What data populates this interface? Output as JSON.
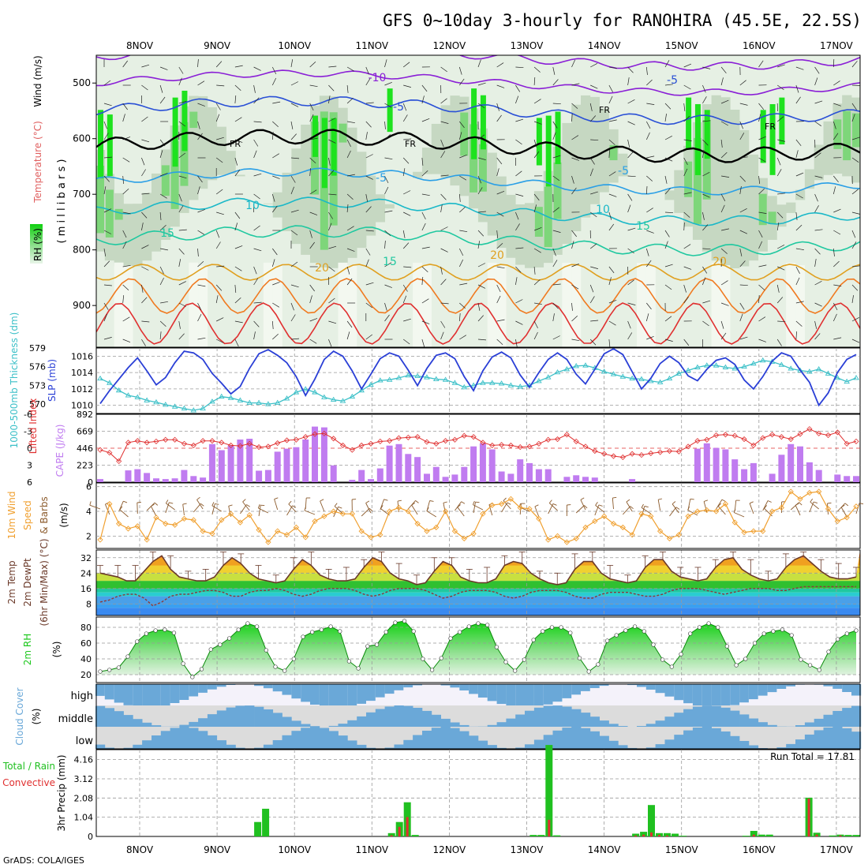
{
  "header": {
    "title": "GFS 0~10day 3-hourly for RANOHIRA (45.5E, 22.5S)",
    "credit": "GrADS: COLA/IGES",
    "run_total": "Run Total = 17.81"
  },
  "colors": {
    "rh_light": "#e6f0e4",
    "rh_mid": "#c6d8c2",
    "rh_high": "#7ed67a",
    "rh_sat": "#1ee21e",
    "slp": "#2a3fd6",
    "thickness": "#3cc0c8",
    "cape": "#c07cf0",
    "lifted": "#e03030",
    "wind10": "#f0a030",
    "barb": "#8b5a2b",
    "rh2m": "#1ec81e",
    "cloud": "#6aa8d8",
    "precip_total": "#20c020",
    "precip_conv": "#e03030",
    "temp_line": "#6b3a2a"
  },
  "dates": [
    "8NOV",
    "9NOV",
    "10NOV",
    "11NOV",
    "12NOV",
    "13NOV",
    "14NOV",
    "15NOV",
    "16NOV",
    "17NOV"
  ],
  "panels": {
    "upper": {
      "ylabel_rh": "RH (%)",
      "ylabel_temp": "Temperature (°C)",
      "ylabel_wind": "Wind (m/s)",
      "ylabel_p": "( m i l l i b a r s )",
      "yticks": [
        "500",
        "600",
        "700",
        "800",
        "900"
      ],
      "contour_labels": [
        "-10",
        "-5",
        "-5",
        "FR",
        "FR",
        "FR",
        "FR",
        "-5",
        "-5",
        "10",
        "10",
        "15",
        "15",
        "15",
        "20",
        "20",
        "20"
      ]
    },
    "slp": {
      "ylabel_thick": "1000-500mb Thickness (dm)",
      "ylabel_slp": "SLP (mb)",
      "thick_ticks": [
        "579",
        "576",
        "573",
        "570"
      ],
      "slp_ticks": [
        "1016",
        "1014",
        "1012",
        "1010"
      ]
    },
    "cape": {
      "ylabel_li": "Lifted Index",
      "ylabel_cape": "CAPE (J/kg)",
      "li_ticks": [
        "-6",
        "-3",
        "0",
        "3",
        "6"
      ],
      "cape_ticks": [
        "892",
        "669",
        "446",
        "223",
        "0"
      ]
    },
    "wind": {
      "ylabel_1": "10m Wind",
      "ylabel_2": "Speed",
      "ylabel_3": "& Barbs",
      "ylabel_4": "(m/s)",
      "ticks": [
        "6",
        "4",
        "2"
      ]
    },
    "temp": {
      "ylabel_1": "2m Temp",
      "ylabel_2": "2m DewPt",
      "ylabel_3": "(6hr Min/Max) (°C)",
      "ticks": [
        "32",
        "24",
        "16",
        "8"
      ]
    },
    "rh": {
      "ylabel_1": "2m RH",
      "ylabel_2": "(%)",
      "ticks": [
        "80",
        "60",
        "40",
        "20"
      ]
    },
    "cloud": {
      "ylabel_1": "Cloud Cover",
      "ylabel_2": "(%)",
      "levels": [
        "high",
        "middle",
        "low"
      ]
    },
    "precip": {
      "ylabel_1": "Total / Rain",
      "ylabel_2": "Convective",
      "ylabel_3": "3hr Precip (mm)",
      "ticks": [
        "4.16",
        "3.12",
        "2.08",
        "1.04",
        "0"
      ]
    }
  },
  "chart_data": [
    {
      "type": "line",
      "name": "slp_thickness",
      "series": [
        {
          "name": "SLP (mb)",
          "ylim": [
            1009,
            1017
          ],
          "values": [
            1010.2,
            1011.8,
            1013.2,
            1014.6,
            1015.8,
            1014.2,
            1012.5,
            1013.4,
            1015.2,
            1016.6,
            1016.4,
            1015.6,
            1013.9,
            1012.7,
            1011.4,
            1012.3,
            1014.5,
            1016.3,
            1016.8,
            1016.1,
            1015.2,
            1013.5,
            1011.2,
            1013.2,
            1015.6,
            1016.6,
            1016.0,
            1014.2,
            1012.0,
            1013.8,
            1015.7,
            1016.4,
            1016.0,
            1014.3,
            1012.4,
            1014.5,
            1016.1,
            1016.4,
            1015.7,
            1013.5,
            1011.8,
            1014.2,
            1015.9,
            1016.5,
            1015.8,
            1013.7,
            1012.2,
            1014.0,
            1015.6,
            1016.4,
            1015.6,
            1013.8,
            1012.6,
            1014.4,
            1016.3,
            1016.9,
            1016.2,
            1014.1,
            1012.0,
            1013.3,
            1015.1,
            1016.0,
            1015.2,
            1013.6,
            1013.0,
            1014.4,
            1015.5,
            1015.8,
            1015.0,
            1013.1,
            1012.0,
            1013.5,
            1015.4,
            1016.4,
            1016.0,
            1014.3,
            1012.8,
            1010.0,
            1011.5,
            1014.0,
            1015.6,
            1016.2
          ]
        },
        {
          "name": "Thickness (dm)",
          "ylim": [
            568.5,
            579
          ],
          "values": [
            574.1,
            573.4,
            572.2,
            571.4,
            571.1,
            570.6,
            570.3,
            569.9,
            569.6,
            569.3,
            569.0,
            569.3,
            570.4,
            571.2,
            571.0,
            570.6,
            570.2,
            570.2,
            570.0,
            570.2,
            570.9,
            571.9,
            572.4,
            571.9,
            571.1,
            570.7,
            570.5,
            571.2,
            572.2,
            573.1,
            573.8,
            573.9,
            574.2,
            574.6,
            574.5,
            574.3,
            574.0,
            573.9,
            573.4,
            572.7,
            573.0,
            573.4,
            573.4,
            573.3,
            573.0,
            572.8,
            573.0,
            573.7,
            574.3,
            575.1,
            575.6,
            576.1,
            576.2,
            575.8,
            575.2,
            574.8,
            574.4,
            574.1,
            574.0,
            573.7,
            573.5,
            574.1,
            574.9,
            575.4,
            575.9,
            576.2,
            576.2,
            575.9,
            575.7,
            576.0,
            576.5,
            577.0,
            576.8,
            576.3,
            575.7,
            575.4,
            575.2,
            575.6,
            574.9,
            574.2,
            573.6,
            574.2
          ]
        }
      ]
    },
    {
      "type": "bar",
      "name": "cape_li",
      "ylim": [
        0,
        892
      ],
      "cape": [
        40,
        0,
        0,
        155,
        170,
        120,
        50,
        40,
        50,
        160,
        80,
        60,
        500,
        420,
        480,
        560,
        570,
        150,
        160,
        400,
        440,
        460,
        560,
        730,
        720,
        220,
        0,
        30,
        160,
        40,
        180,
        480,
        500,
        370,
        330,
        110,
        200,
        70,
        100,
        200,
        470,
        510,
        430,
        140,
        110,
        300,
        250,
        170,
        170,
        0,
        70,
        90,
        70,
        60,
        0,
        0,
        0,
        40,
        0,
        0,
        0,
        0,
        0,
        0,
        440,
        510,
        450,
        430,
        300,
        170,
        250,
        0,
        110,
        360,
        500,
        470,
        260,
        160,
        0,
        100,
        80,
        80
      ],
      "li_ylim": [
        -6,
        6
      ],
      "lifted_index": [
        0.3,
        0.8,
        2.3,
        -1.0,
        -1.3,
        -1.0,
        -1.2,
        -1.5,
        -1.5,
        -0.8,
        -0.5,
        -1.3,
        -1.3,
        -1.0,
        -0.5,
        -0.4,
        -0.8,
        -0.2,
        -0.3,
        -0.9,
        -1.4,
        -1.5,
        -2.0,
        -2.5,
        -2.6,
        -1.7,
        -0.5,
        0.3,
        -0.5,
        -0.8,
        -1.2,
        -1.3,
        -1.8,
        -1.9,
        -2.0,
        -1.1,
        -0.8,
        -1.3,
        -1.5,
        -2.2,
        -2.0,
        -1.0,
        -0.5,
        -0.6,
        -0.5,
        -0.2,
        -0.3,
        -0.8,
        -1.5,
        -1.6,
        -2.4,
        -1.2,
        -0.3,
        0.5,
        1.0,
        1.4,
        1.6,
        1.0,
        1.2,
        0.9,
        0.7,
        0.5,
        0.6,
        -0.3,
        -1.3,
        -1.5,
        -2.3,
        -2.4,
        -2.2,
        -1.6,
        -0.5,
        -1.8,
        -2.4,
        -2.0,
        -1.6,
        -2.5,
        -3.4,
        -2.6,
        -2.3,
        -2.8,
        -0.8,
        -1.2
      ]
    },
    {
      "type": "line",
      "name": "wind_10m",
      "ylim": [
        1,
        6.3
      ],
      "values": [
        1.7,
        4.6,
        3.0,
        2.6,
        2.8,
        1.7,
        3.5,
        3.0,
        2.9,
        3.4,
        3.3,
        2.4,
        2.2,
        3.3,
        3.8,
        3.1,
        3.7,
        2.5,
        1.5,
        2.4,
        2.1,
        2.7,
        1.9,
        3.2,
        3.6,
        4.0,
        3.8,
        3.8,
        2.4,
        1.9,
        2.1,
        4.0,
        4.3,
        4.0,
        3.0,
        2.4,
        2.7,
        4.0,
        2.4,
        1.8,
        2.2,
        3.8,
        4.5,
        4.6,
        5.0,
        4.3,
        4.2,
        3.4,
        1.7,
        2.0,
        1.5,
        1.8,
        2.7,
        3.2,
        3.6,
        3.0,
        2.7,
        2.1,
        3.8,
        3.6,
        2.4,
        1.8,
        2.1,
        3.6,
        4.0,
        4.1,
        4.0,
        4.6,
        3.1,
        2.3,
        2.4,
        2.4,
        4.0,
        4.3,
        5.6,
        5.0,
        5.5,
        5.6,
        4.2,
        3.2,
        3.5,
        4.4
      ]
    },
    {
      "type": "area",
      "name": "temp_2m",
      "ylim": [
        2,
        36
      ],
      "temp": [
        24,
        23,
        22,
        20,
        20,
        25,
        30,
        33,
        26,
        22,
        21,
        20,
        20,
        22,
        28,
        32,
        29,
        24,
        21,
        20,
        19,
        20,
        26,
        31,
        28,
        23,
        21,
        20,
        20,
        21,
        27,
        32,
        30,
        24,
        21,
        20,
        18,
        19,
        25,
        30,
        28,
        22,
        20,
        19,
        19,
        21,
        28,
        30,
        29,
        24,
        21,
        19,
        18,
        19,
        26,
        30,
        30,
        24,
        21,
        20,
        19,
        20,
        27,
        31,
        31,
        25,
        22,
        21,
        20,
        21,
        27,
        31,
        32,
        26,
        23,
        21,
        20,
        21,
        27,
        31,
        33,
        29,
        25,
        22,
        21,
        21,
        22
      ],
      "dewpt": [
        9,
        10,
        12,
        13,
        13,
        11,
        7,
        9,
        12,
        13,
        13,
        14,
        15,
        15,
        14,
        12,
        12,
        14,
        15,
        15,
        16,
        15,
        13,
        12,
        13,
        15,
        16,
        16,
        16,
        15,
        13,
        12,
        13,
        15,
        16,
        16,
        16,
        15,
        13,
        11,
        12,
        14,
        15,
        15,
        15,
        14,
        12,
        11,
        12,
        14,
        15,
        15,
        15,
        14,
        12,
        11,
        11,
        13,
        14,
        14,
        14,
        13,
        12,
        12,
        13,
        15,
        16,
        16,
        16,
        15,
        14,
        13,
        14,
        15,
        16,
        16,
        16,
        15,
        15,
        16,
        17,
        17,
        17,
        17,
        17,
        17,
        17
      ]
    },
    {
      "type": "area",
      "name": "rh_2m",
      "ylim": [
        10,
        93
      ],
      "values": [
        24,
        26,
        29,
        43,
        62,
        72,
        76,
        77,
        73,
        34,
        17,
        27,
        52,
        58,
        66,
        77,
        85,
        81,
        51,
        30,
        25,
        40,
        68,
        74,
        77,
        81,
        75,
        37,
        28,
        56,
        58,
        74,
        86,
        88,
        75,
        40,
        26,
        41,
        66,
        74,
        81,
        85,
        83,
        55,
        36,
        25,
        39,
        64,
        75,
        80,
        80,
        73,
        41,
        24,
        33,
        63,
        70,
        76,
        81,
        75,
        58,
        39,
        30,
        46,
        72,
        80,
        85,
        80,
        56,
        32,
        40,
        60,
        72,
        75,
        77,
        70,
        39,
        32,
        26,
        49,
        65,
        72,
        76
      ]
    },
    {
      "type": "bar",
      "name": "precip_3hr",
      "ylim": [
        0,
        4.7
      ],
      "total": [
        0,
        0,
        0,
        0,
        0,
        0,
        0,
        0,
        0,
        0,
        0,
        0,
        0,
        0,
        0,
        0,
        0,
        0,
        0,
        0,
        0.78,
        1.5,
        0,
        0,
        0,
        0,
        0,
        0,
        0,
        0,
        0,
        0,
        0,
        0,
        0,
        0,
        0,
        0.18,
        0.78,
        1.85,
        0.08,
        0,
        0,
        0,
        0,
        0,
        0,
        0,
        0,
        0,
        0,
        0,
        0,
        0,
        0,
        0.08,
        0.08,
        4.95,
        0.06,
        0,
        0,
        0,
        0,
        0,
        0,
        0,
        0,
        0,
        0.15,
        0.25,
        1.7,
        0.18,
        0.18,
        0.15,
        0.04,
        0,
        0,
        0,
        0,
        0,
        0,
        0,
        0.04,
        0.3,
        0.1,
        0.1,
        0,
        0,
        0,
        0,
        2.1,
        0.2,
        0,
        0.05,
        0.1,
        0.08,
        0.08
      ],
      "conv": [
        0,
        0,
        0,
        0,
        0,
        0,
        0,
        0,
        0,
        0,
        0,
        0,
        0,
        0,
        0,
        0,
        0,
        0,
        0,
        0,
        0,
        0,
        0,
        0,
        0,
        0,
        0,
        0,
        0,
        0,
        0,
        0,
        0,
        0,
        0,
        0,
        0,
        0.06,
        0.52,
        1.05,
        0,
        0,
        0,
        0,
        0,
        0,
        0,
        0,
        0,
        0,
        0,
        0,
        0,
        0,
        0,
        0,
        0,
        0.9,
        0,
        0,
        0,
        0,
        0,
        0,
        0,
        0,
        0,
        0,
        0.05,
        0.1,
        0.22,
        0.08,
        0.05,
        0,
        0,
        0,
        0,
        0,
        0,
        0,
        0,
        0,
        0,
        0.1,
        0,
        0,
        0,
        0,
        0,
        0,
        2.05,
        0.1,
        0,
        0,
        0.05,
        0,
        0
      ]
    }
  ]
}
